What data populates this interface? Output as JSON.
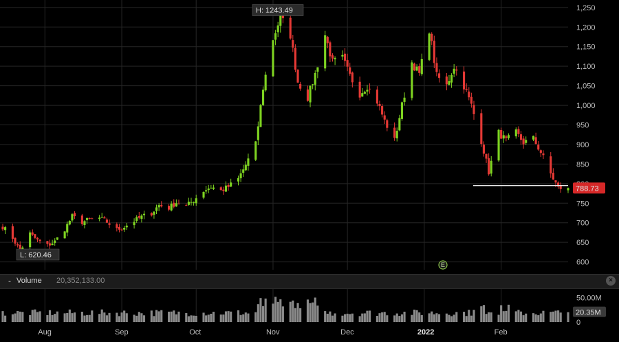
{
  "chart_data": [
    {
      "type": "candlestick",
      "x_axis": {
        "months": [
          "Aug",
          "Sep",
          "Oct",
          "Nov",
          "Dec",
          "2022",
          "Feb"
        ],
        "year_label": "2022",
        "range": [
          "2021-07-15",
          "2022-02-28"
        ]
      },
      "y_axis": {
        "ticks": [
          600,
          650,
          700,
          750,
          800,
          850,
          900,
          950,
          1000,
          1050,
          1100,
          1150,
          1200,
          1250
        ],
        "tick_labels": [
          "600",
          "650",
          "700",
          "750",
          "800",
          "850",
          "900",
          "950",
          "1,000",
          "1,050",
          "1,100",
          "1,150",
          "1,200",
          "1,250"
        ],
        "range": [
          580,
          1255
        ]
      },
      "high_label": "H: 1243.49",
      "low_label": "L: 620.46",
      "high": 1243.49,
      "low": 620.46,
      "last_price": 788.73,
      "last_price_label": "788.73",
      "support_line": 795,
      "earnings_marker": "E",
      "grid": true,
      "colors": {
        "up": "#7ed321",
        "down": "#e53935",
        "last_price_bg": "#d62828",
        "grid": "#262626"
      },
      "close_path": [
        [
          "2021-07-15",
          690
        ],
        [
          "2021-07-19",
          662
        ],
        [
          "2021-07-22",
          628
        ],
        [
          "2021-07-26",
          672
        ],
        [
          "2021-07-29",
          655
        ],
        [
          "2021-08-02",
          642
        ],
        [
          "2021-08-05",
          652
        ],
        [
          "2021-08-09",
          684
        ],
        [
          "2021-08-12",
          716
        ],
        [
          "2021-08-16",
          702
        ],
        [
          "2021-08-19",
          708
        ],
        [
          "2021-08-23",
          712
        ],
        [
          "2021-08-26",
          702
        ],
        [
          "2021-08-30",
          682
        ],
        [
          "2021-09-02",
          690
        ],
        [
          "2021-09-06",
          705
        ],
        [
          "2021-09-09",
          715
        ],
        [
          "2021-09-13",
          725
        ],
        [
          "2021-09-16",
          745
        ],
        [
          "2021-09-20",
          738
        ],
        [
          "2021-09-23",
          752
        ],
        [
          "2021-09-27",
          742
        ],
        [
          "2021-09-30",
          758
        ],
        [
          "2021-10-04",
          782
        ],
        [
          "2021-10-07",
          792
        ],
        [
          "2021-10-11",
          782
        ],
        [
          "2021-10-14",
          792
        ],
        [
          "2021-10-18",
          812
        ],
        [
          "2021-10-21",
          848
        ],
        [
          "2021-10-25",
          900
        ],
        [
          "2021-10-28",
          1045
        ],
        [
          "2021-11-01",
          1170
        ],
        [
          "2021-11-04",
          1225
        ],
        [
          "2021-11-08",
          1180
        ],
        [
          "2021-11-11",
          1060
        ],
        [
          "2021-11-15",
          1020
        ],
        [
          "2021-11-18",
          1080
        ],
        [
          "2021-11-22",
          1180
        ],
        [
          "2021-11-25",
          1110
        ],
        [
          "2021-11-29",
          1120
        ],
        [
          "2021-12-02",
          1075
        ],
        [
          "2021-12-06",
          1030
        ],
        [
          "2021-12-09",
          1050
        ],
        [
          "2021-12-13",
          1010
        ],
        [
          "2021-12-16",
          960
        ],
        [
          "2021-12-20",
          910
        ],
        [
          "2021-12-23",
          1000
        ],
        [
          "2021-12-27",
          1110
        ],
        [
          "2021-12-30",
          1080
        ],
        [
          "2022-01-03",
          1195
        ],
        [
          "2022-01-06",
          1075
        ],
        [
          "2022-01-10",
          1050
        ],
        [
          "2022-01-13",
          1100
        ],
        [
          "2022-01-17",
          1050
        ],
        [
          "2022-01-20",
          1000
        ],
        [
          "2022-01-24",
          910
        ],
        [
          "2022-01-27",
          830
        ],
        [
          "2022-01-31",
          930
        ],
        [
          "2022-02-03",
          910
        ],
        [
          "2022-02-07",
          930
        ],
        [
          "2022-02-10",
          905
        ],
        [
          "2022-02-14",
          915
        ],
        [
          "2022-02-17",
          880
        ],
        [
          "2022-02-21",
          825
        ],
        [
          "2022-02-24",
          788.73
        ]
      ]
    },
    {
      "type": "bar",
      "title": "Volume",
      "value_label": "20,352,133.00",
      "ticks": [
        0,
        50000000
      ],
      "tick_labels": [
        "0",
        "50.00M"
      ],
      "last_label": "20.35M",
      "last": 20350000,
      "range": [
        0,
        68000000
      ]
    }
  ],
  "volume_header": {
    "collapse_label": "-",
    "title": "Volume",
    "value": "20,352,133.00",
    "close_label": "×"
  }
}
